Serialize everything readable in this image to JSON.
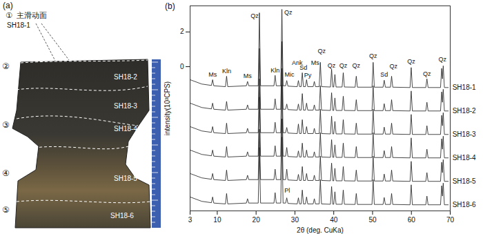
{
  "photo_panel": {
    "title": "(a)",
    "slip_surface": {
      "number": "①",
      "label": "主滑动面",
      "sample": "SH18-1"
    },
    "zones": [
      {
        "number": "②",
        "samples": [
          "SH18-2",
          "SH18-3"
        ]
      },
      {
        "number": "③",
        "samples": [
          "SH18-4"
        ]
      },
      {
        "number": "④",
        "samples": [
          "SH18-5"
        ]
      },
      {
        "number": "⑤",
        "samples": [
          "SH18-6"
        ]
      }
    ]
  },
  "chart_data": {
    "type": "line",
    "title": "(b)",
    "x_label": "2θ (deg. CuKa)",
    "y_label": "intensity(10³CPS)",
    "color": "#1a1a1a",
    "grid": false,
    "xlim": [
      3,
      70
    ],
    "xticks": [
      3,
      10,
      20,
      30,
      40,
      50,
      60,
      70
    ],
    "ylim": [
      -8.3,
      3.5
    ],
    "yticks": [
      0,
      2
    ],
    "x": [
      3,
      6,
      8.5,
      8.8,
      9.1,
      12.1,
      12.4,
      12.7,
      17.5,
      17.8,
      18.1,
      20.55,
      20.85,
      21.15,
      24.6,
      24.9,
      25.2,
      26.35,
      26.65,
      26.95,
      27.6,
      27.9,
      28.2,
      30.6,
      30.9,
      31.2,
      31.6,
      31.9,
      32.2,
      32.7,
      33.0,
      33.3,
      34.7,
      35.0,
      35.3,
      36.25,
      36.55,
      36.85,
      39.15,
      39.45,
      39.75,
      40.0,
      40.3,
      40.6,
      42.15,
      42.45,
      42.75,
      45.5,
      45.8,
      46.1,
      49.85,
      50.15,
      50.45,
      52.7,
      53.0,
      53.3,
      54.6,
      54.9,
      55.2,
      59.65,
      59.95,
      60.25,
      63.7,
      64.0,
      64.3,
      67.5,
      67.8,
      68.0,
      68.2,
      68.5,
      69.5
    ],
    "series": [
      {
        "name": "SH18-1",
        "values": [
          -0.75,
          -1.0,
          -1.08,
          -0.75,
          -1.1,
          -1.15,
          -0.55,
          -1.15,
          -1.1,
          -0.85,
          -1.1,
          -1.1,
          3.1,
          -1.1,
          -1.1,
          -0.5,
          -1.1,
          -1.1,
          3.3,
          -1.1,
          -1.1,
          -0.8,
          -1.12,
          -1.15,
          -0.8,
          -1.15,
          -1.15,
          -0.35,
          -1.15,
          -1.15,
          -0.75,
          -1.15,
          -1.15,
          -0.85,
          -1.15,
          -1.15,
          0.25,
          -1.15,
          -1.17,
          -0.15,
          -1.17,
          -1.17,
          -0.45,
          -1.17,
          -1.17,
          -0.35,
          -1.17,
          -1.18,
          -0.55,
          -1.18,
          -1.18,
          0.25,
          -1.18,
          -1.18,
          -0.78,
          -1.18,
          -1.18,
          -0.55,
          -1.18,
          -1.2,
          -0.05,
          -1.2,
          -1.2,
          -0.7,
          -1.2,
          -1.2,
          -0.1,
          -0.7,
          0.05,
          -1.2,
          -1.2
        ]
      },
      {
        "name": "SH18-2",
        "values": [
          -2.1,
          -2.35,
          -2.43,
          -2.1,
          -2.45,
          -2.5,
          -2.0,
          -2.5,
          -2.45,
          -2.2,
          -2.45,
          -2.45,
          1.05,
          -2.45,
          -2.45,
          -1.85,
          -2.45,
          -2.45,
          1.45,
          -2.45,
          -2.45,
          -2.15,
          -2.47,
          -2.5,
          -2.15,
          -2.5,
          -2.5,
          -1.55,
          -2.5,
          -2.5,
          -2.1,
          -2.5,
          -2.5,
          -2.2,
          -2.5,
          -2.5,
          -1.1,
          -2.5,
          -2.52,
          -1.5,
          -2.52,
          -2.52,
          -1.8,
          -2.52,
          -2.52,
          -1.7,
          -2.52,
          -2.53,
          -1.9,
          -2.53,
          -2.53,
          -1.1,
          -2.53,
          -2.53,
          -2.13,
          -2.53,
          -2.53,
          -1.9,
          -2.53,
          -2.55,
          -1.4,
          -2.55,
          -2.55,
          -2.05,
          -2.55,
          -2.55,
          -1.45,
          -2.05,
          -1.3,
          -2.55,
          -2.55
        ]
      },
      {
        "name": "SH18-3",
        "values": [
          -3.45,
          -3.7,
          -3.78,
          -3.45,
          -3.8,
          -3.85,
          -3.25,
          -3.85,
          -3.8,
          -3.55,
          -3.8,
          -3.8,
          -0.7,
          -3.8,
          -3.8,
          -3.2,
          -3.8,
          -3.8,
          -0.1,
          -3.8,
          -3.8,
          -3.5,
          -3.82,
          -3.85,
          -3.3,
          -3.85,
          -3.85,
          -3.05,
          -3.85,
          -3.85,
          -3.45,
          -3.85,
          -3.85,
          -3.55,
          -3.85,
          -3.85,
          -2.45,
          -3.85,
          -3.87,
          -2.85,
          -3.87,
          -3.87,
          -3.15,
          -3.87,
          -3.87,
          -3.05,
          -3.87,
          -3.88,
          -3.25,
          -3.88,
          -3.88,
          -2.45,
          -3.88,
          -3.88,
          -3.48,
          -3.88,
          -3.88,
          -3.25,
          -3.88,
          -3.9,
          -2.75,
          -3.9,
          -3.9,
          -3.4,
          -3.9,
          -3.9,
          -2.8,
          -3.4,
          -2.65,
          -3.9,
          -3.9
        ]
      },
      {
        "name": "SH18-4",
        "values": [
          -4.8,
          -5.05,
          -5.13,
          -4.8,
          -5.15,
          -5.2,
          -4.6,
          -5.2,
          -5.15,
          -4.9,
          -5.15,
          -5.15,
          -1.75,
          -5.15,
          -5.15,
          -4.55,
          -5.15,
          -5.15,
          -1.05,
          -5.15,
          -5.15,
          -4.65,
          -5.17,
          -5.2,
          -4.85,
          -5.2,
          -5.2,
          -4.4,
          -5.2,
          -5.2,
          -4.8,
          -5.2,
          -5.2,
          -4.9,
          -5.2,
          -5.2,
          -3.8,
          -5.2,
          -5.22,
          -4.2,
          -5.22,
          -5.22,
          -4.5,
          -5.22,
          -5.22,
          -4.4,
          -5.22,
          -5.23,
          -4.6,
          -5.23,
          -5.23,
          -3.8,
          -5.23,
          -5.23,
          -4.83,
          -5.23,
          -5.23,
          -4.6,
          -5.23,
          -5.25,
          -4.1,
          -5.25,
          -5.25,
          -4.75,
          -5.25,
          -5.25,
          -4.15,
          -4.75,
          -4.0,
          -5.25,
          -5.25
        ]
      },
      {
        "name": "SH18-5",
        "values": [
          -6.15,
          -6.4,
          -6.48,
          -6.15,
          -6.5,
          -6.55,
          -5.95,
          -6.55,
          -6.5,
          -6.25,
          -6.5,
          -6.5,
          -3.6,
          -6.5,
          -6.5,
          -5.9,
          -6.5,
          -6.5,
          -3.0,
          -6.5,
          -6.5,
          -5.9,
          -6.52,
          -6.55,
          -6.2,
          -6.55,
          -6.55,
          -5.75,
          -6.55,
          -6.55,
          -6.15,
          -6.55,
          -6.55,
          -6.25,
          -6.55,
          -6.55,
          -5.15,
          -6.55,
          -6.57,
          -5.55,
          -6.57,
          -6.57,
          -5.85,
          -6.57,
          -6.57,
          -5.75,
          -6.57,
          -6.58,
          -5.95,
          -6.58,
          -6.58,
          -5.15,
          -6.58,
          -6.58,
          -6.18,
          -6.58,
          -6.58,
          -5.95,
          -6.58,
          -6.6,
          -5.45,
          -6.6,
          -6.6,
          -6.1,
          -6.6,
          -6.6,
          -5.5,
          -6.1,
          -5.35,
          -6.6,
          -6.6
        ]
      },
      {
        "name": "SH18-6",
        "values": [
          -7.5,
          -7.75,
          -7.83,
          -7.5,
          -7.85,
          -7.9,
          -7.3,
          -7.9,
          -7.85,
          -7.6,
          -7.85,
          -7.85,
          -4.65,
          -7.85,
          -7.85,
          -7.25,
          -7.85,
          -7.85,
          -4.05,
          -7.85,
          -7.85,
          -7.55,
          -7.87,
          -7.9,
          -7.55,
          -7.9,
          -7.9,
          -7.1,
          -7.9,
          -7.9,
          -7.5,
          -7.9,
          -7.9,
          -7.6,
          -7.9,
          -7.9,
          -6.5,
          -7.9,
          -7.92,
          -6.9,
          -7.92,
          -7.92,
          -7.2,
          -7.92,
          -7.92,
          -7.1,
          -7.92,
          -7.93,
          -7.3,
          -7.93,
          -7.93,
          -6.5,
          -7.93,
          -7.93,
          -7.53,
          -7.93,
          -7.93,
          -7.3,
          -7.93,
          -7.95,
          -6.8,
          -7.95,
          -7.95,
          -7.45,
          -7.95,
          -7.95,
          -6.85,
          -7.45,
          -6.7,
          -7.95,
          -7.95
        ]
      }
    ],
    "annotations": [
      {
        "text": "Ms",
        "x": 8.8,
        "y": -0.45
      },
      {
        "text": "Kln",
        "x": 12.4,
        "y": -0.25
      },
      {
        "text": "Ms",
        "x": 17.8,
        "y": -0.55
      },
      {
        "text": "Qz",
        "x": 19.6,
        "y": 2.9
      },
      {
        "text": "Kln",
        "x": 24.9,
        "y": -0.2
      },
      {
        "text": "Qz",
        "x": 28.3,
        "y": 3.1
      },
      {
        "text": "Mic",
        "x": 28.6,
        "y": -0.45
      },
      {
        "text": "Ank",
        "x": 30.6,
        "y": 0.2
      },
      {
        "text": "Sd",
        "x": 32.2,
        "y": -0.05
      },
      {
        "text": "Py",
        "x": 33.3,
        "y": -0.5
      },
      {
        "text": "Ms",
        "x": 35.2,
        "y": 0.2
      },
      {
        "text": "Qz",
        "x": 36.9,
        "y": 0.9
      },
      {
        "text": "Qz",
        "x": 39.45,
        "y": 0.05
      },
      {
        "text": "Qz",
        "x": 42.45,
        "y": 0.05
      },
      {
        "text": "Qz",
        "x": 45.8,
        "y": 0.05
      },
      {
        "text": "Qz",
        "x": 50.15,
        "y": 0.6
      },
      {
        "text": "Sd",
        "x": 53.0,
        "y": -0.45
      },
      {
        "text": "Qz",
        "x": 55.4,
        "y": 0.0
      },
      {
        "text": "Qz",
        "x": 59.95,
        "y": 0.3
      },
      {
        "text": "Qz",
        "x": 64.0,
        "y": -0.4
      },
      {
        "text": "Qz",
        "x": 68.0,
        "y": 0.4
      },
      {
        "text": "Pl",
        "x": 28.0,
        "y": -7.15
      }
    ]
  }
}
